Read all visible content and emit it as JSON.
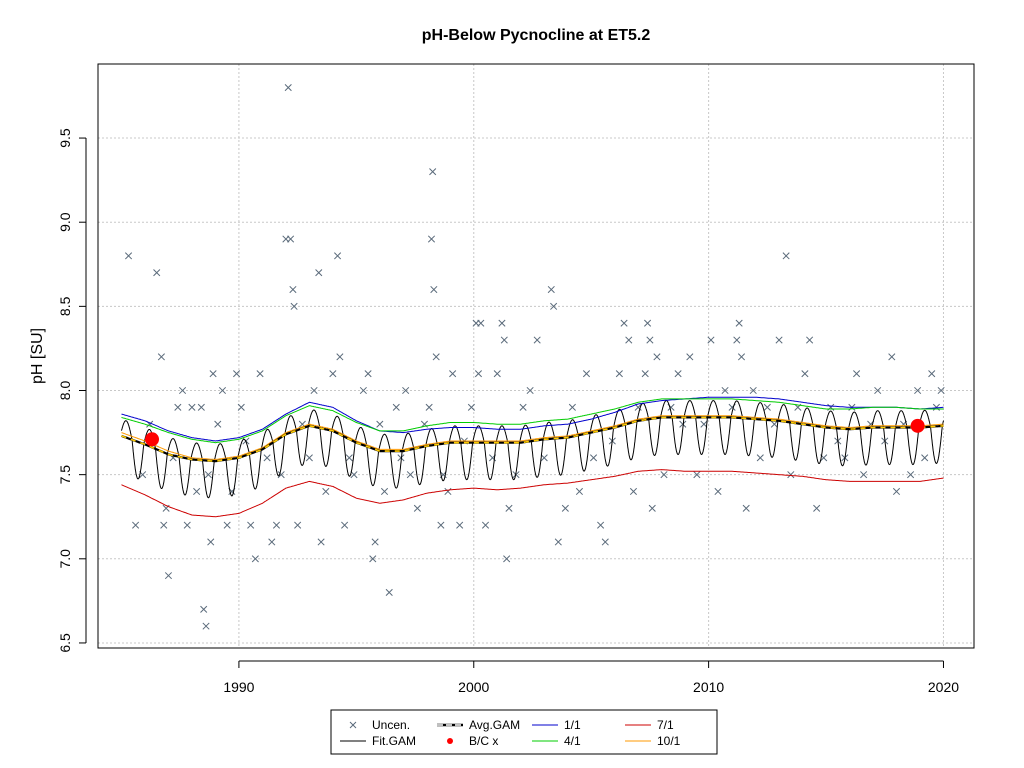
{
  "chart_data": {
    "type": "scatter",
    "title": "pH-Below Pycnocline at ET5.2",
    "ylabel": "pH [SU]",
    "xlabel": "",
    "xlim": [
      1984,
      2021.3
    ],
    "ylim": [
      6.47,
      9.94
    ],
    "x_ticks": [
      1990,
      2000,
      2010,
      2020
    ],
    "y_ticks": [
      6.5,
      7.0,
      7.5,
      8.0,
      8.5,
      9.0,
      9.5
    ],
    "x_tick_labels": [
      "1990",
      "2000",
      "2010",
      "2020"
    ],
    "y_tick_labels": [
      "6.5",
      "7.0",
      "7.5",
      "8.0",
      "8.5",
      "9.0",
      "9.5"
    ],
    "grid": true,
    "legend_position": "bottom",
    "colors": {
      "points": "#5a6a7a",
      "fit": "#000000",
      "avg": "#000000",
      "avg_dash": "#ffcc00",
      "bc": "#ff0000",
      "s11": "#0000cc",
      "s41": "#00cc00",
      "s71": "#cc0000",
      "s101": "#ff9900",
      "grid": "#c8c8c8"
    },
    "legend": [
      {
        "label": "Uncen.",
        "kind": "cross",
        "color": "#5a6a7a"
      },
      {
        "label": "Avg.GAM",
        "kind": "avgline",
        "color": "#000000"
      },
      {
        "label": "1/1",
        "kind": "line",
        "color": "#0000cc"
      },
      {
        "label": "7/1",
        "kind": "line",
        "color": "#cc0000"
      },
      {
        "label": "Fit.GAM",
        "kind": "line",
        "color": "#000000"
      },
      {
        "label": "B/C x",
        "kind": "dot",
        "color": "#ff0000"
      },
      {
        "label": "4/1",
        "kind": "line",
        "color": "#00cc00"
      },
      {
        "label": "10/1",
        "kind": "line",
        "color": "#ff9900"
      }
    ],
    "bc_points": [
      {
        "x": 1986.3,
        "y": 7.71
      },
      {
        "x": 2018.9,
        "y": 7.79
      }
    ],
    "points": [
      [
        1985.3,
        8.8
      ],
      [
        1985.6,
        7.2
      ],
      [
        1985.9,
        7.5
      ],
      [
        1986.2,
        7.8
      ],
      [
        1986.5,
        8.7
      ],
      [
        1986.7,
        8.2
      ],
      [
        1986.8,
        7.2
      ],
      [
        1986.9,
        7.3
      ],
      [
        1987.0,
        6.9
      ],
      [
        1987.2,
        7.6
      ],
      [
        1987.4,
        7.9
      ],
      [
        1987.6,
        8.0
      ],
      [
        1987.8,
        7.2
      ],
      [
        1988.0,
        7.9
      ],
      [
        1988.2,
        7.4
      ],
      [
        1988.4,
        7.9
      ],
      [
        1988.5,
        6.7
      ],
      [
        1988.6,
        6.6
      ],
      [
        1988.7,
        7.5
      ],
      [
        1988.8,
        7.1
      ],
      [
        1988.9,
        8.1
      ],
      [
        1989.1,
        7.8
      ],
      [
        1989.3,
        8.0
      ],
      [
        1989.5,
        7.2
      ],
      [
        1989.7,
        7.4
      ],
      [
        1989.9,
        8.1
      ],
      [
        1990.1,
        7.9
      ],
      [
        1990.3,
        7.7
      ],
      [
        1990.5,
        7.2
      ],
      [
        1990.7,
        7.0
      ],
      [
        1990.9,
        8.1
      ],
      [
        1991.2,
        7.6
      ],
      [
        1991.4,
        7.1
      ],
      [
        1991.6,
        7.2
      ],
      [
        1991.8,
        7.5
      ],
      [
        1992.0,
        8.9
      ],
      [
        1992.1,
        9.8
      ],
      [
        1992.2,
        8.9
      ],
      [
        1992.3,
        8.6
      ],
      [
        1992.35,
        8.5
      ],
      [
        1992.5,
        7.2
      ],
      [
        1992.7,
        7.8
      ],
      [
        1993.0,
        7.6
      ],
      [
        1993.2,
        8.0
      ],
      [
        1993.4,
        8.7
      ],
      [
        1993.5,
        7.1
      ],
      [
        1993.7,
        7.4
      ],
      [
        1994.0,
        8.1
      ],
      [
        1994.2,
        8.8
      ],
      [
        1994.3,
        8.2
      ],
      [
        1994.5,
        7.2
      ],
      [
        1994.7,
        7.6
      ],
      [
        1994.9,
        7.5
      ],
      [
        1995.3,
        8.0
      ],
      [
        1995.5,
        8.1
      ],
      [
        1995.7,
        7.0
      ],
      [
        1995.8,
        7.1
      ],
      [
        1996.0,
        7.8
      ],
      [
        1996.2,
        7.4
      ],
      [
        1996.4,
        6.8
      ],
      [
        1996.7,
        7.9
      ],
      [
        1996.9,
        7.6
      ],
      [
        1997.1,
        8.0
      ],
      [
        1997.3,
        7.5
      ],
      [
        1997.6,
        7.3
      ],
      [
        1997.9,
        7.8
      ],
      [
        1998.1,
        7.9
      ],
      [
        1998.2,
        8.9
      ],
      [
        1998.25,
        9.3
      ],
      [
        1998.3,
        8.6
      ],
      [
        1998.4,
        8.2
      ],
      [
        1998.6,
        7.2
      ],
      [
        1998.7,
        7.5
      ],
      [
        1998.9,
        7.4
      ],
      [
        1999.1,
        8.1
      ],
      [
        1999.4,
        7.2
      ],
      [
        1999.6,
        7.7
      ],
      [
        1999.9,
        7.9
      ],
      [
        2000.1,
        8.4
      ],
      [
        2000.2,
        8.1
      ],
      [
        2000.3,
        8.4
      ],
      [
        2000.5,
        7.2
      ],
      [
        2000.8,
        7.6
      ],
      [
        2001.0,
        8.1
      ],
      [
        2001.2,
        8.4
      ],
      [
        2001.3,
        8.3
      ],
      [
        2001.4,
        7.0
      ],
      [
        2001.5,
        7.3
      ],
      [
        2001.8,
        7.5
      ],
      [
        2002.1,
        7.9
      ],
      [
        2002.4,
        8.0
      ],
      [
        2002.7,
        8.3
      ],
      [
        2003.0,
        7.6
      ],
      [
        2003.3,
        8.6
      ],
      [
        2003.4,
        8.5
      ],
      [
        2003.6,
        7.1
      ],
      [
        2003.9,
        7.3
      ],
      [
        2004.2,
        7.9
      ],
      [
        2004.5,
        7.4
      ],
      [
        2004.8,
        8.1
      ],
      [
        2005.1,
        7.6
      ],
      [
        2005.4,
        7.2
      ],
      [
        2005.6,
        7.1
      ],
      [
        2005.9,
        7.7
      ],
      [
        2006.2,
        8.1
      ],
      [
        2006.4,
        8.4
      ],
      [
        2006.6,
        8.3
      ],
      [
        2006.8,
        7.4
      ],
      [
        2007.0,
        7.9
      ],
      [
        2007.3,
        8.1
      ],
      [
        2007.4,
        8.4
      ],
      [
        2007.5,
        8.3
      ],
      [
        2007.6,
        7.3
      ],
      [
        2007.8,
        8.2
      ],
      [
        2008.1,
        7.5
      ],
      [
        2008.4,
        7.9
      ],
      [
        2008.7,
        8.1
      ],
      [
        2008.9,
        7.8
      ],
      [
        2009.2,
        8.2
      ],
      [
        2009.5,
        7.5
      ],
      [
        2009.8,
        7.8
      ],
      [
        2010.1,
        8.3
      ],
      [
        2010.4,
        7.4
      ],
      [
        2010.7,
        8.0
      ],
      [
        2011.0,
        7.9
      ],
      [
        2011.2,
        8.3
      ],
      [
        2011.3,
        8.4
      ],
      [
        2011.4,
        8.2
      ],
      [
        2011.6,
        7.3
      ],
      [
        2011.9,
        8.0
      ],
      [
        2012.2,
        7.6
      ],
      [
        2012.5,
        7.9
      ],
      [
        2012.8,
        7.8
      ],
      [
        2013.0,
        8.3
      ],
      [
        2013.3,
        8.8
      ],
      [
        2013.5,
        7.5
      ],
      [
        2013.8,
        7.9
      ],
      [
        2014.1,
        8.1
      ],
      [
        2014.3,
        8.3
      ],
      [
        2014.6,
        7.3
      ],
      [
        2014.9,
        7.6
      ],
      [
        2015.2,
        7.9
      ],
      [
        2015.5,
        7.7
      ],
      [
        2015.8,
        7.6
      ],
      [
        2016.1,
        7.9
      ],
      [
        2016.3,
        8.1
      ],
      [
        2016.6,
        7.5
      ],
      [
        2016.9,
        7.8
      ],
      [
        2017.2,
        8.0
      ],
      [
        2017.5,
        7.7
      ],
      [
        2017.8,
        8.2
      ],
      [
        2018.0,
        7.4
      ],
      [
        2018.3,
        7.8
      ],
      [
        2018.6,
        7.5
      ],
      [
        2018.9,
        8.0
      ],
      [
        2019.2,
        7.6
      ],
      [
        2019.5,
        8.1
      ],
      [
        2019.7,
        7.9
      ],
      [
        2019.9,
        8.0
      ]
    ],
    "series": [
      {
        "name": "1/1",
        "color": "#0000cc",
        "x": [
          1985,
          1986,
          1987,
          1988,
          1989,
          1990,
          1991,
          1992,
          1993,
          1994,
          1995,
          1996,
          1997,
          1998,
          1999,
          2000,
          2001,
          2002,
          2003,
          2004,
          2005,
          2006,
          2007,
          2008,
          2009,
          2010,
          2011,
          2012,
          2013,
          2014,
          2015,
          2016,
          2017,
          2018,
          2019,
          2020
        ],
        "y": [
          7.86,
          7.82,
          7.76,
          7.72,
          7.7,
          7.72,
          7.77,
          7.86,
          7.93,
          7.9,
          7.82,
          7.76,
          7.75,
          7.77,
          7.78,
          7.78,
          7.77,
          7.77,
          7.79,
          7.8,
          7.83,
          7.87,
          7.92,
          7.94,
          7.95,
          7.96,
          7.96,
          7.96,
          7.95,
          7.93,
          7.91,
          7.9,
          7.9,
          7.9,
          7.89,
          7.9
        ]
      },
      {
        "name": "4/1",
        "color": "#00cc00",
        "x": [
          1985,
          1986,
          1987,
          1988,
          1989,
          1990,
          1991,
          1992,
          1993,
          1994,
          1995,
          1996,
          1997,
          1998,
          1999,
          2000,
          2001,
          2002,
          2003,
          2004,
          2005,
          2006,
          2007,
          2008,
          2009,
          2010,
          2011,
          2012,
          2013,
          2014,
          2015,
          2016,
          2017,
          2018,
          2019,
          2020
        ],
        "y": [
          7.84,
          7.8,
          7.75,
          7.71,
          7.69,
          7.71,
          7.76,
          7.85,
          7.91,
          7.88,
          7.81,
          7.76,
          7.76,
          7.79,
          7.81,
          7.81,
          7.8,
          7.8,
          7.82,
          7.83,
          7.86,
          7.89,
          7.93,
          7.95,
          7.95,
          7.95,
          7.95,
          7.94,
          7.93,
          7.91,
          7.89,
          7.89,
          7.9,
          7.9,
          7.89,
          7.89
        ]
      },
      {
        "name": "7/1",
        "color": "#cc0000",
        "x": [
          1985,
          1986,
          1987,
          1988,
          1989,
          1990,
          1991,
          1992,
          1993,
          1994,
          1995,
          1996,
          1997,
          1998,
          1999,
          2000,
          2001,
          2002,
          2003,
          2004,
          2005,
          2006,
          2007,
          2008,
          2009,
          2010,
          2011,
          2012,
          2013,
          2014,
          2015,
          2016,
          2017,
          2018,
          2019,
          2020
        ],
        "y": [
          7.44,
          7.38,
          7.31,
          7.26,
          7.25,
          7.27,
          7.33,
          7.42,
          7.46,
          7.43,
          7.36,
          7.33,
          7.35,
          7.39,
          7.41,
          7.42,
          7.41,
          7.42,
          7.44,
          7.45,
          7.47,
          7.49,
          7.52,
          7.53,
          7.52,
          7.52,
          7.52,
          7.51,
          7.5,
          7.49,
          7.47,
          7.46,
          7.46,
          7.46,
          7.46,
          7.48
        ]
      },
      {
        "name": "10/1",
        "color": "#ff9900",
        "x": [
          1985,
          1986,
          1987,
          1988,
          1989,
          1990,
          1991,
          1992,
          1993,
          1994,
          1995,
          1996,
          1997,
          1998,
          1999,
          2000,
          2001,
          2002,
          2003,
          2004,
          2005,
          2006,
          2007,
          2008,
          2009,
          2010,
          2011,
          2012,
          2013,
          2014,
          2015,
          2016,
          2017,
          2018,
          2019,
          2020
        ],
        "y": [
          7.75,
          7.7,
          7.64,
          7.6,
          7.59,
          7.61,
          7.66,
          7.75,
          7.8,
          7.77,
          7.7,
          7.65,
          7.65,
          7.68,
          7.7,
          7.7,
          7.7,
          7.7,
          7.72,
          7.73,
          7.76,
          7.79,
          7.83,
          7.85,
          7.85,
          7.85,
          7.85,
          7.84,
          7.83,
          7.81,
          7.79,
          7.78,
          7.79,
          7.79,
          7.79,
          7.8
        ]
      },
      {
        "name": "Avg.GAM",
        "color": "#000000",
        "x": [
          1985,
          1986,
          1987,
          1988,
          1989,
          1990,
          1991,
          1992,
          1993,
          1994,
          1995,
          1996,
          1997,
          1998,
          1999,
          2000,
          2001,
          2002,
          2003,
          2004,
          2005,
          2006,
          2007,
          2008,
          2009,
          2010,
          2011,
          2012,
          2013,
          2014,
          2015,
          2016,
          2017,
          2018,
          2019,
          2020
        ],
        "y": [
          7.73,
          7.68,
          7.62,
          7.59,
          7.58,
          7.6,
          7.65,
          7.74,
          7.79,
          7.76,
          7.69,
          7.64,
          7.64,
          7.67,
          7.69,
          7.69,
          7.69,
          7.69,
          7.71,
          7.72,
          7.75,
          7.78,
          7.82,
          7.84,
          7.84,
          7.84,
          7.84,
          7.83,
          7.82,
          7.8,
          7.78,
          7.77,
          7.78,
          7.78,
          7.78,
          7.79
        ]
      }
    ],
    "fit_gam": {
      "name": "Fit.GAM",
      "color": "#000000",
      "x_start": 1985.0,
      "x_end": 2020.0,
      "amplitude_above": 0.1,
      "amplitude_below": 0.22
    }
  }
}
